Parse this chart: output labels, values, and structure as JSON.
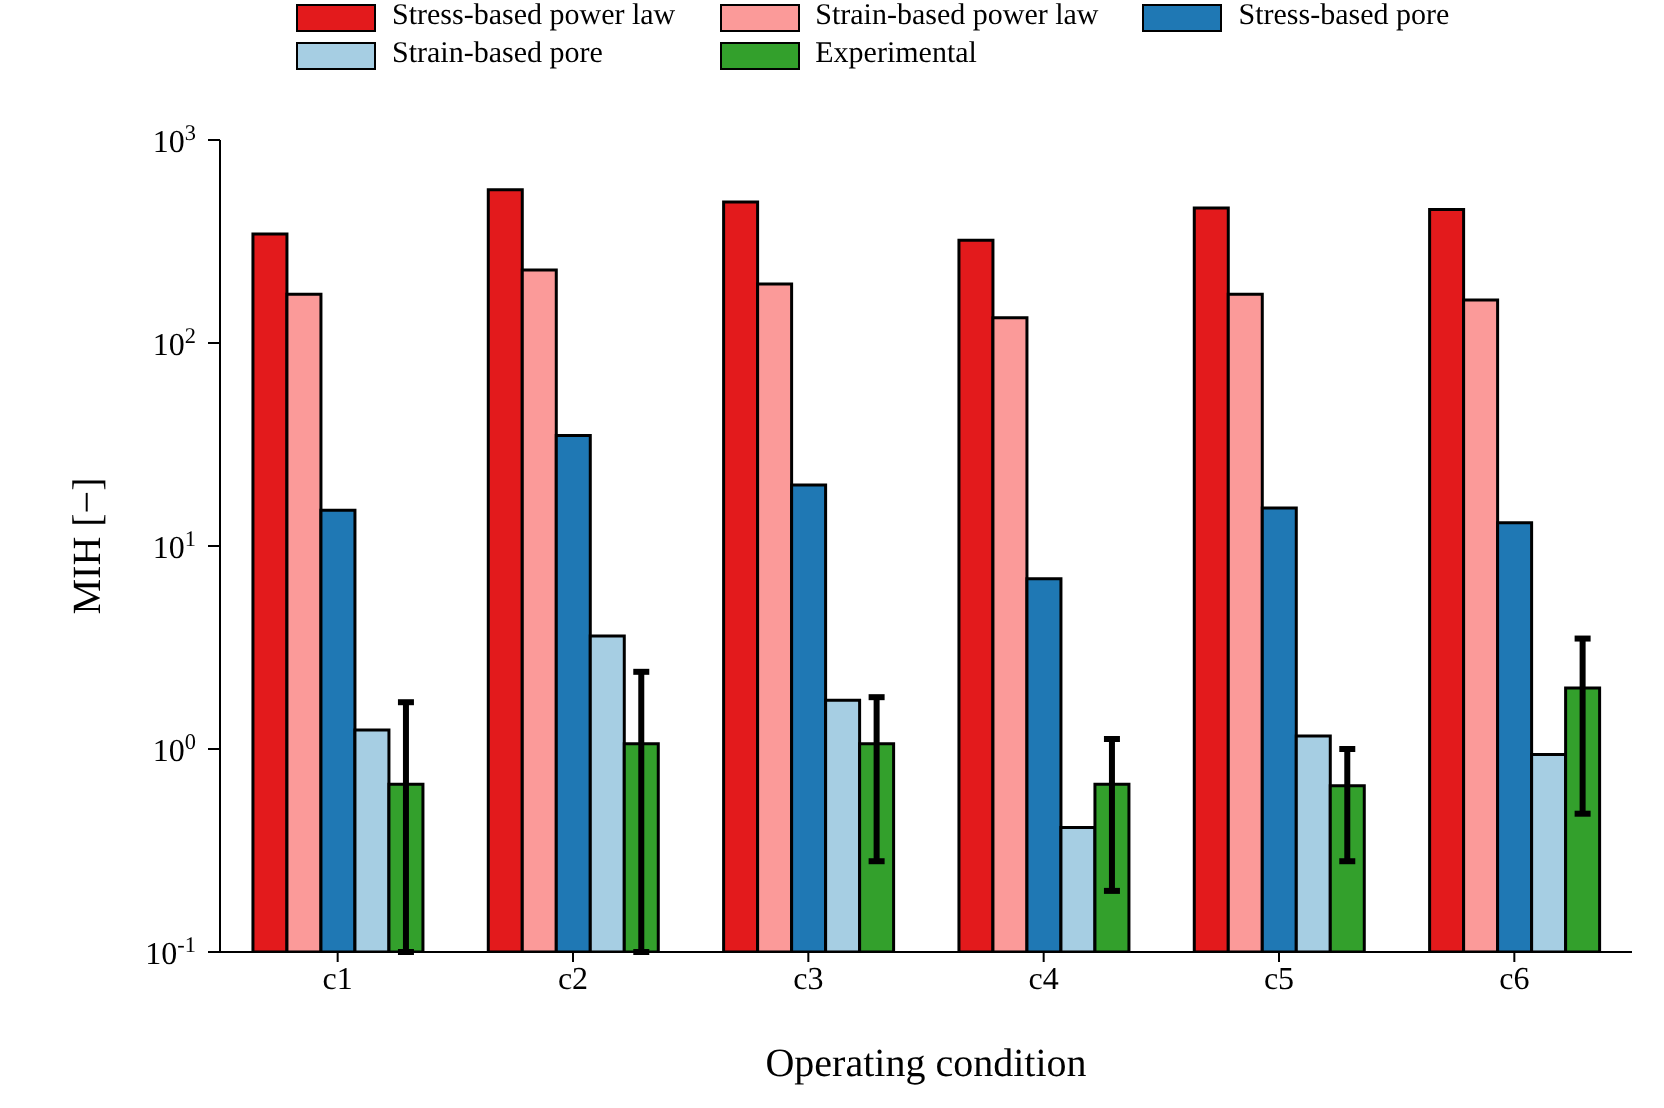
{
  "chart_data": {
    "type": "bar",
    "xlabel": "Operating condition",
    "ylabel": "MIH [−]",
    "categories": [
      "c1",
      "c2",
      "c3",
      "c4",
      "c5",
      "c6"
    ],
    "log": "y",
    "ylim": [
      0.1,
      1000
    ],
    "yticks": [
      {
        "value": 0.1,
        "label": "10$^{-1}$"
      },
      {
        "value": 1,
        "label": "10$^{0}$"
      },
      {
        "value": 10,
        "label": "10$^{1}$"
      },
      {
        "value": 100,
        "label": "10$^{2}$"
      },
      {
        "value": 1000,
        "label": "10$^{3}$"
      }
    ],
    "legend": "top",
    "series": [
      {
        "name": "Stress-based power law",
        "color": "#e31a1c",
        "values": [
          344,
          568,
          495,
          321,
          463,
          455
        ]
      },
      {
        "name": "Strain-based power law",
        "color": "#fb9a99",
        "values": [
          174,
          229,
          195,
          133,
          174,
          163
        ]
      },
      {
        "name": "Stress-based pore",
        "color": "#1f78b4",
        "values": [
          15,
          35,
          20,
          6.9,
          15.4,
          13
        ]
      },
      {
        "name": "Strain-based pore",
        "color": "#a6cee3",
        "values": [
          1.24,
          3.6,
          1.74,
          0.41,
          1.16,
          0.94
        ]
      },
      {
        "name": "Experimental",
        "color": "#33a02c",
        "values": [
          0.67,
          1.06,
          1.06,
          0.67,
          0.66,
          2.0
        ],
        "errors": [
          [
            0.1,
            1.7
          ],
          [
            0.1,
            2.4
          ],
          [
            0.28,
            1.8
          ],
          [
            0.2,
            1.12
          ],
          [
            0.28,
            1.0
          ],
          [
            0.48,
            3.5
          ]
        ]
      }
    ]
  }
}
